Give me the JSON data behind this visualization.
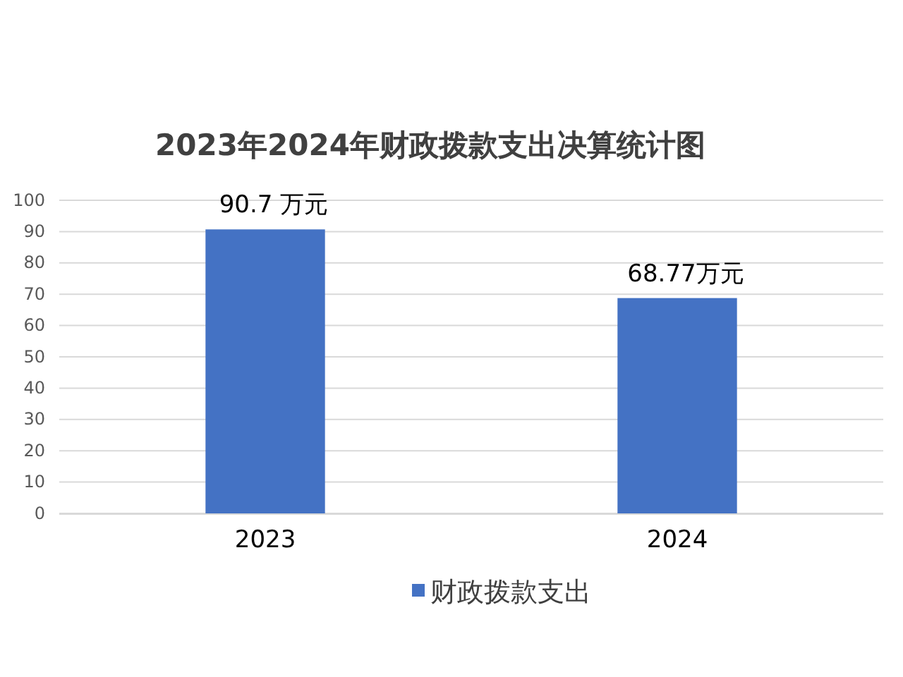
{
  "chart_data": {
    "type": "bar",
    "title": "2023年2024年财政拨款支出决算统计图",
    "categories": [
      "2023",
      "2024"
    ],
    "series": [
      {
        "name": "财政拨款支出",
        "color": "#4472c4",
        "values": [
          90.7,
          68.77
        ],
        "value_labels": [
          "90.7 万元",
          "68.77万元"
        ]
      }
    ],
    "ylim": [
      0,
      100
    ],
    "yticks": [
      0,
      10,
      20,
      30,
      40,
      50,
      60,
      70,
      80,
      90,
      100
    ],
    "grid": "y",
    "legend": "bottom"
  }
}
